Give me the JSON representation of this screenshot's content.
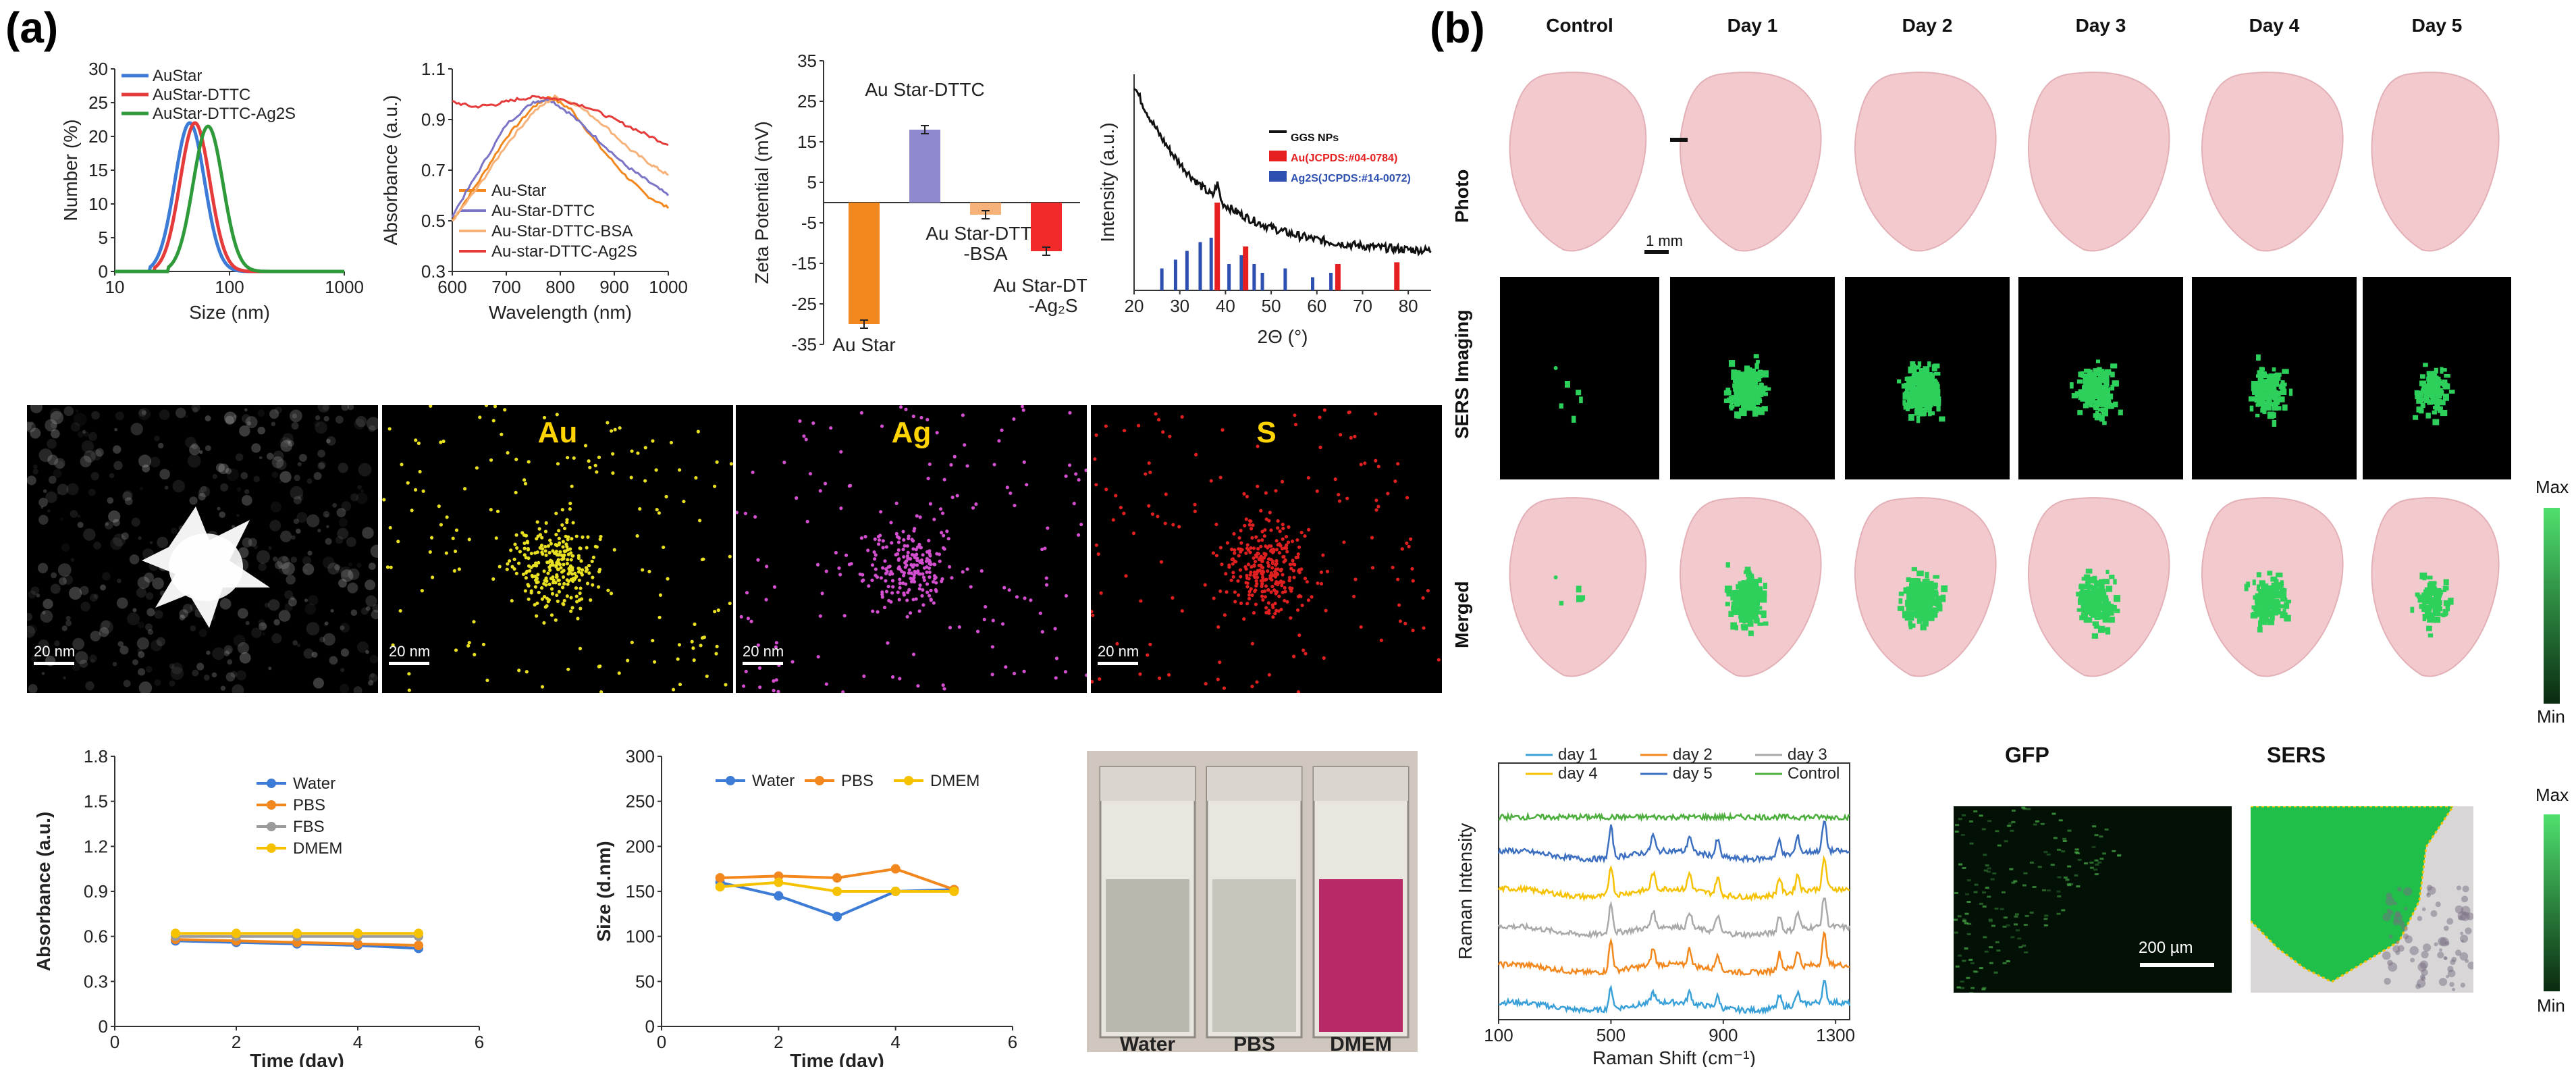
{
  "panel_a": {
    "label": "(a)"
  },
  "panel_b": {
    "label": "(b)"
  },
  "colors": {
    "blue": "#3c7bd6",
    "red": "#e63b3b",
    "green": "#2e9a3a",
    "orange": "#f2871e",
    "purple": "#7b74c6",
    "peach": "#f7b27a",
    "gray": "#9b9b9b",
    "yellow": "#f6c200",
    "black": "#111111",
    "scan_green": "#2dd05a",
    "tissue": "#f0c8c8"
  },
  "chart_data": [
    {
      "id": "dls",
      "type": "line",
      "xscale": "log",
      "xlabel": "Size (nm)",
      "ylabel": "Number (%)",
      "xlim": [
        10,
        1000
      ],
      "ylim": [
        0,
        30
      ],
      "xticks": [
        "10",
        "100",
        "1000"
      ],
      "yticks": [
        "0",
        "5",
        "10",
        "15",
        "20",
        "25",
        "30"
      ],
      "series": [
        {
          "name": "AuStar",
          "color": "#3c7bd6",
          "peak": 45,
          "height": 22,
          "width": 0.13
        },
        {
          "name": "AuStar-DTTC",
          "color": "#e63b3b",
          "peak": 50,
          "height": 22,
          "width": 0.13
        },
        {
          "name": "AuStar-DTTC-Ag2S",
          "color": "#2e9a3a",
          "peak": 65,
          "height": 21.5,
          "width": 0.13
        }
      ]
    },
    {
      "id": "uvvis",
      "type": "line",
      "xlabel": "Wavelength (nm)",
      "ylabel": "Absorbance (a.u.)",
      "xlim": [
        600,
        1000
      ],
      "ylim": [
        0.3,
        1.1
      ],
      "xticks": [
        "600",
        "700",
        "800",
        "900",
        "1000"
      ],
      "yticks": [
        "0.3",
        "0.5",
        "0.7",
        "0.9",
        "1.1"
      ],
      "series": [
        {
          "name": "Au-Star",
          "color": "#f2871e",
          "points": [
            [
              600,
              0.5
            ],
            [
              650,
              0.66
            ],
            [
              700,
              0.83
            ],
            [
              750,
              0.95
            ],
            [
              780,
              0.99
            ],
            [
              820,
              0.94
            ],
            [
              870,
              0.8
            ],
            [
              920,
              0.68
            ],
            [
              960,
              0.6
            ],
            [
              1000,
              0.55
            ]
          ]
        },
        {
          "name": "Au-Star-DTTC",
          "color": "#7b74c6",
          "points": [
            [
              600,
              0.52
            ],
            [
              650,
              0.7
            ],
            [
              700,
              0.88
            ],
            [
              750,
              0.97
            ],
            [
              780,
              0.98
            ],
            [
              820,
              0.92
            ],
            [
              870,
              0.82
            ],
            [
              920,
              0.72
            ],
            [
              960,
              0.66
            ],
            [
              1000,
              0.6
            ]
          ]
        },
        {
          "name": "Au-Star-DTTC-BSA",
          "color": "#f7b27a",
          "points": [
            [
              600,
              0.5
            ],
            [
              650,
              0.64
            ],
            [
              700,
              0.8
            ],
            [
              750,
              0.93
            ],
            [
              790,
              0.99
            ],
            [
              830,
              0.96
            ],
            [
              880,
              0.88
            ],
            [
              930,
              0.78
            ],
            [
              970,
              0.72
            ],
            [
              1000,
              0.68
            ]
          ]
        },
        {
          "name": "Au-star-DTTC-Ag2S",
          "color": "#e63b3b",
          "points": [
            [
              600,
              0.97
            ],
            [
              640,
              0.95
            ],
            [
              680,
              0.96
            ],
            [
              720,
              0.98
            ],
            [
              760,
              0.99
            ],
            [
              800,
              0.98
            ],
            [
              850,
              0.95
            ],
            [
              900,
              0.9
            ],
            [
              950,
              0.85
            ],
            [
              1000,
              0.8
            ]
          ]
        }
      ]
    },
    {
      "id": "zeta",
      "type": "bar",
      "ylabel": "Zeta Potential (mV)",
      "ylim": [
        -35,
        35
      ],
      "yticks": [
        "35",
        "25",
        "15",
        "5",
        "-5",
        "-15",
        "-25",
        "-35"
      ],
      "categories": [
        "Au Star",
        "Au Star-DTTC",
        "Au Star-DTTC -BSA",
        "Au Star-DTTC -Ag₂S"
      ],
      "values": [
        -30,
        18,
        -3,
        -12
      ],
      "colors": [
        "#f2871e",
        "#8f8ad0",
        "#f7b27a",
        "#f22a2a"
      ],
      "label_lines": [
        [
          "Au Star"
        ],
        [
          "Au Star-DTTC"
        ],
        [
          "Au Star-DTTC",
          "-BSA"
        ],
        [
          "Au Star-DTTC",
          "-Ag₂S"
        ]
      ]
    },
    {
      "id": "xrd",
      "type": "line",
      "xlabel": "2Θ (°)",
      "ylabel": "Intensity (a.u.)",
      "xlim": [
        20,
        85
      ],
      "xticks": [
        "20",
        "30",
        "40",
        "50",
        "60",
        "70",
        "80"
      ],
      "legend": [
        "GGS NPs",
        "Au(JCPDS:#04-0784)",
        "Ag2S(JCPDS:#14-0072)"
      ],
      "au_peaks": [
        [
          38.2,
          1.0
        ],
        [
          44.4,
          0.5
        ],
        [
          64.6,
          0.3
        ],
        [
          77.5,
          0.32
        ]
      ],
      "ag2s_peaks": [
        [
          26,
          0.25
        ],
        [
          29,
          0.35
        ],
        [
          31.5,
          0.45
        ],
        [
          34.4,
          0.55
        ],
        [
          36.8,
          0.6
        ],
        [
          40.7,
          0.3
        ],
        [
          43.4,
          0.4
        ],
        [
          46.2,
          0.3
        ],
        [
          48,
          0.2
        ],
        [
          53,
          0.25
        ],
        [
          59,
          0.15
        ],
        [
          63,
          0.2
        ]
      ]
    },
    {
      "id": "stab_abs",
      "type": "line",
      "xlabel": "Time (day)",
      "ylabel": "Absorbance (a.u.)",
      "xlim": [
        0,
        6
      ],
      "ylim": [
        0,
        1.8
      ],
      "xticks": [
        "0",
        "2",
        "4",
        "6"
      ],
      "yticks": [
        "0",
        "0.3",
        "0.6",
        "0.9",
        "1.2",
        "1.5",
        "1.8"
      ],
      "x": [
        1,
        2,
        3,
        4,
        5
      ],
      "series": [
        {
          "name": "Water",
          "color": "#3c7bd6",
          "values": [
            0.57,
            0.56,
            0.55,
            0.54,
            0.52
          ]
        },
        {
          "name": "PBS",
          "color": "#f2871e",
          "values": [
            0.58,
            0.57,
            0.56,
            0.55,
            0.54
          ]
        },
        {
          "name": "FBS",
          "color": "#9b9b9b",
          "values": [
            0.6,
            0.6,
            0.6,
            0.6,
            0.6
          ]
        },
        {
          "name": "DMEM",
          "color": "#f6c200",
          "values": [
            0.62,
            0.62,
            0.62,
            0.62,
            0.62
          ]
        }
      ]
    },
    {
      "id": "stab_size",
      "type": "line",
      "xlabel": "Time (day)",
      "ylabel": "Size (d.nm)",
      "xlim": [
        0,
        6
      ],
      "ylim": [
        0,
        300
      ],
      "xticks": [
        "0",
        "2",
        "4",
        "6"
      ],
      "yticks": [
        "0",
        "50",
        "100",
        "150",
        "200",
        "250",
        "300"
      ],
      "x": [
        1,
        2,
        3,
        4,
        5
      ],
      "series": [
        {
          "name": "Water",
          "color": "#3c7bd6",
          "values": [
            160,
            145,
            122,
            150,
            152
          ]
        },
        {
          "name": "PBS",
          "color": "#f2871e",
          "values": [
            165,
            167,
            165,
            175,
            152
          ]
        },
        {
          "name": "DMEM",
          "color": "#f6c200",
          "values": [
            155,
            160,
            150,
            150,
            150
          ]
        }
      ]
    },
    {
      "id": "raman",
      "type": "line",
      "xlabel": "Raman Shift (cm⁻¹)",
      "ylabel": "Raman Intensity",
      "xlim": [
        100,
        1350
      ],
      "xticks": [
        "100",
        "500",
        "900",
        "1300"
      ],
      "series": [
        {
          "name": "day 1",
          "color": "#3aa0d8"
        },
        {
          "name": "day 2",
          "color": "#f2871e"
        },
        {
          "name": "day 3",
          "color": "#a9a9a9"
        },
        {
          "name": "day 4",
          "color": "#f6c200"
        },
        {
          "name": "day 5",
          "color": "#3c6fc0"
        },
        {
          "name": "Control",
          "color": "#4cae3c"
        }
      ],
      "peaks": [
        500,
        650,
        780,
        880,
        1100,
        1165,
        1260
      ]
    }
  ],
  "images_a": [
    {
      "label": "",
      "kind": "haadf",
      "scalebar": "20 nm"
    },
    {
      "label": "Au",
      "kind": "dots",
      "color": "#e8e020",
      "scalebar": "20 nm"
    },
    {
      "label": "Ag",
      "kind": "dots",
      "color": "#d44fd0",
      "scalebar": "20 nm"
    },
    {
      "label": "S",
      "kind": "dots",
      "color": "#e02020",
      "scalebar": ""
    }
  ],
  "photo_caption": [
    "Water",
    "PBS",
    "DMEM"
  ],
  "grid_b": {
    "columns": [
      "Control",
      "Day 1",
      "Day 2",
      "Day 3",
      "Day 4",
      "Day 5"
    ],
    "rows": [
      "Photo",
      "SERS Imaging",
      "Merged"
    ],
    "scalebar": "1 mm",
    "colorbar": {
      "max": "Max",
      "min": "Min"
    },
    "intensity": [
      0.02,
      0.8,
      0.85,
      0.6,
      0.5,
      0.35
    ]
  },
  "bottom_b": {
    "gfp": "GFP",
    "sers": "SERS",
    "scalebar": "200 µm",
    "colorbar": {
      "max": "Max",
      "min": "Min"
    }
  }
}
